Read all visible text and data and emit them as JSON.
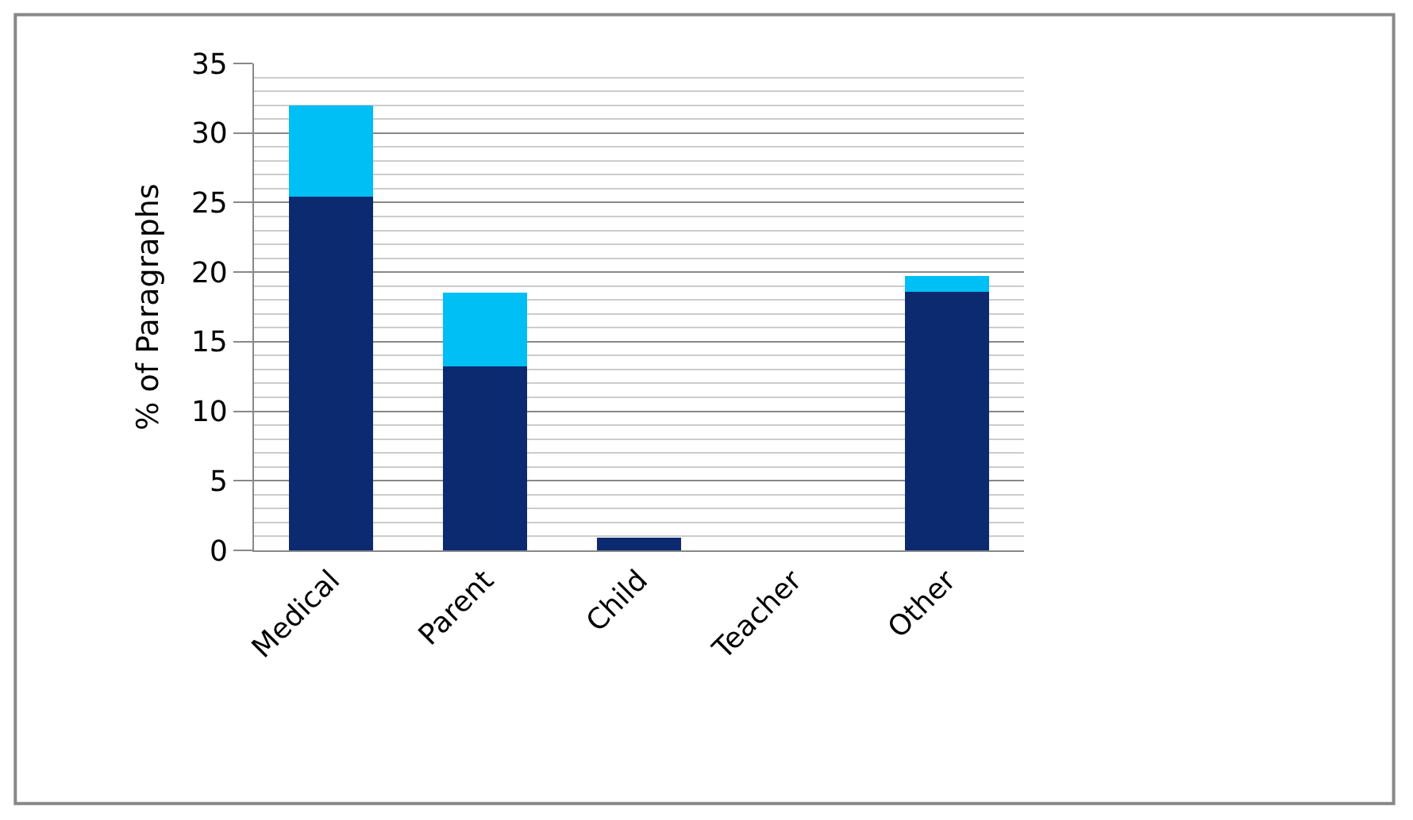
{
  "chart_data": {
    "type": "bar",
    "stacked": true,
    "ylabel": "% of Paragraphs",
    "categories": [
      "Medical",
      "Parent",
      "Child",
      "Teacher",
      "Other"
    ],
    "series": [
      {
        "color": "#0b2a6f",
        "values": [
          25.4,
          13.2,
          0.9,
          0,
          18.6
        ]
      },
      {
        "color": "#00bff5",
        "values": [
          6.6,
          5.3,
          0,
          0,
          1.1
        ]
      }
    ],
    "ylim": [
      0,
      35
    ],
    "yticks": [
      0,
      5,
      10,
      15,
      20,
      25,
      30,
      35
    ],
    "grid": "y"
  }
}
